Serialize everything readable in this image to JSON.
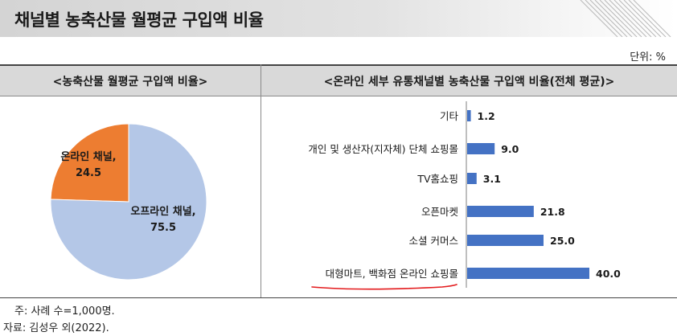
{
  "title": "채널별 농축산물 월평균 구입액 비율",
  "unit_label": "단위: %",
  "notes": {
    "note1": "주: 사례 수=1,000명.",
    "note2": "자료: 김성우 외(2022)."
  },
  "colors": {
    "offline": "#b4c7e7",
    "online": "#ed7d31",
    "bar": "#4472c4",
    "underline": "#e31a1c"
  },
  "chart_data": [
    {
      "type": "pie",
      "title": "<농축산물 월평균 구입액 비율>",
      "slices": [
        {
          "label_line1": "온라인 채널,",
          "label_line2": "24.5",
          "value": 24.5
        },
        {
          "label_line1": "오프라인 채널,",
          "label_line2": "75.5",
          "value": 75.5
        }
      ]
    },
    {
      "type": "bar",
      "orientation": "horizontal",
      "title": "<온라인 세부 유통채널별 농축산물 구입액 비율(전체 평균)>",
      "categories": [
        "기타",
        "개인 및 생산자(지자체) 단체 쇼핑몰",
        "TV홈쇼핑",
        "오픈마켓",
        "소셜 커머스",
        "대형마트, 백화점 온라인 쇼핑몰"
      ],
      "values": [
        1.2,
        9.0,
        3.1,
        21.8,
        25.0,
        40.0
      ],
      "value_labels": [
        "1.2",
        "9.0",
        "3.1",
        "21.8",
        "25.0",
        "40.0"
      ],
      "highlighted_category": "대형마트, 백화점 온라인 쇼핑몰"
    }
  ]
}
